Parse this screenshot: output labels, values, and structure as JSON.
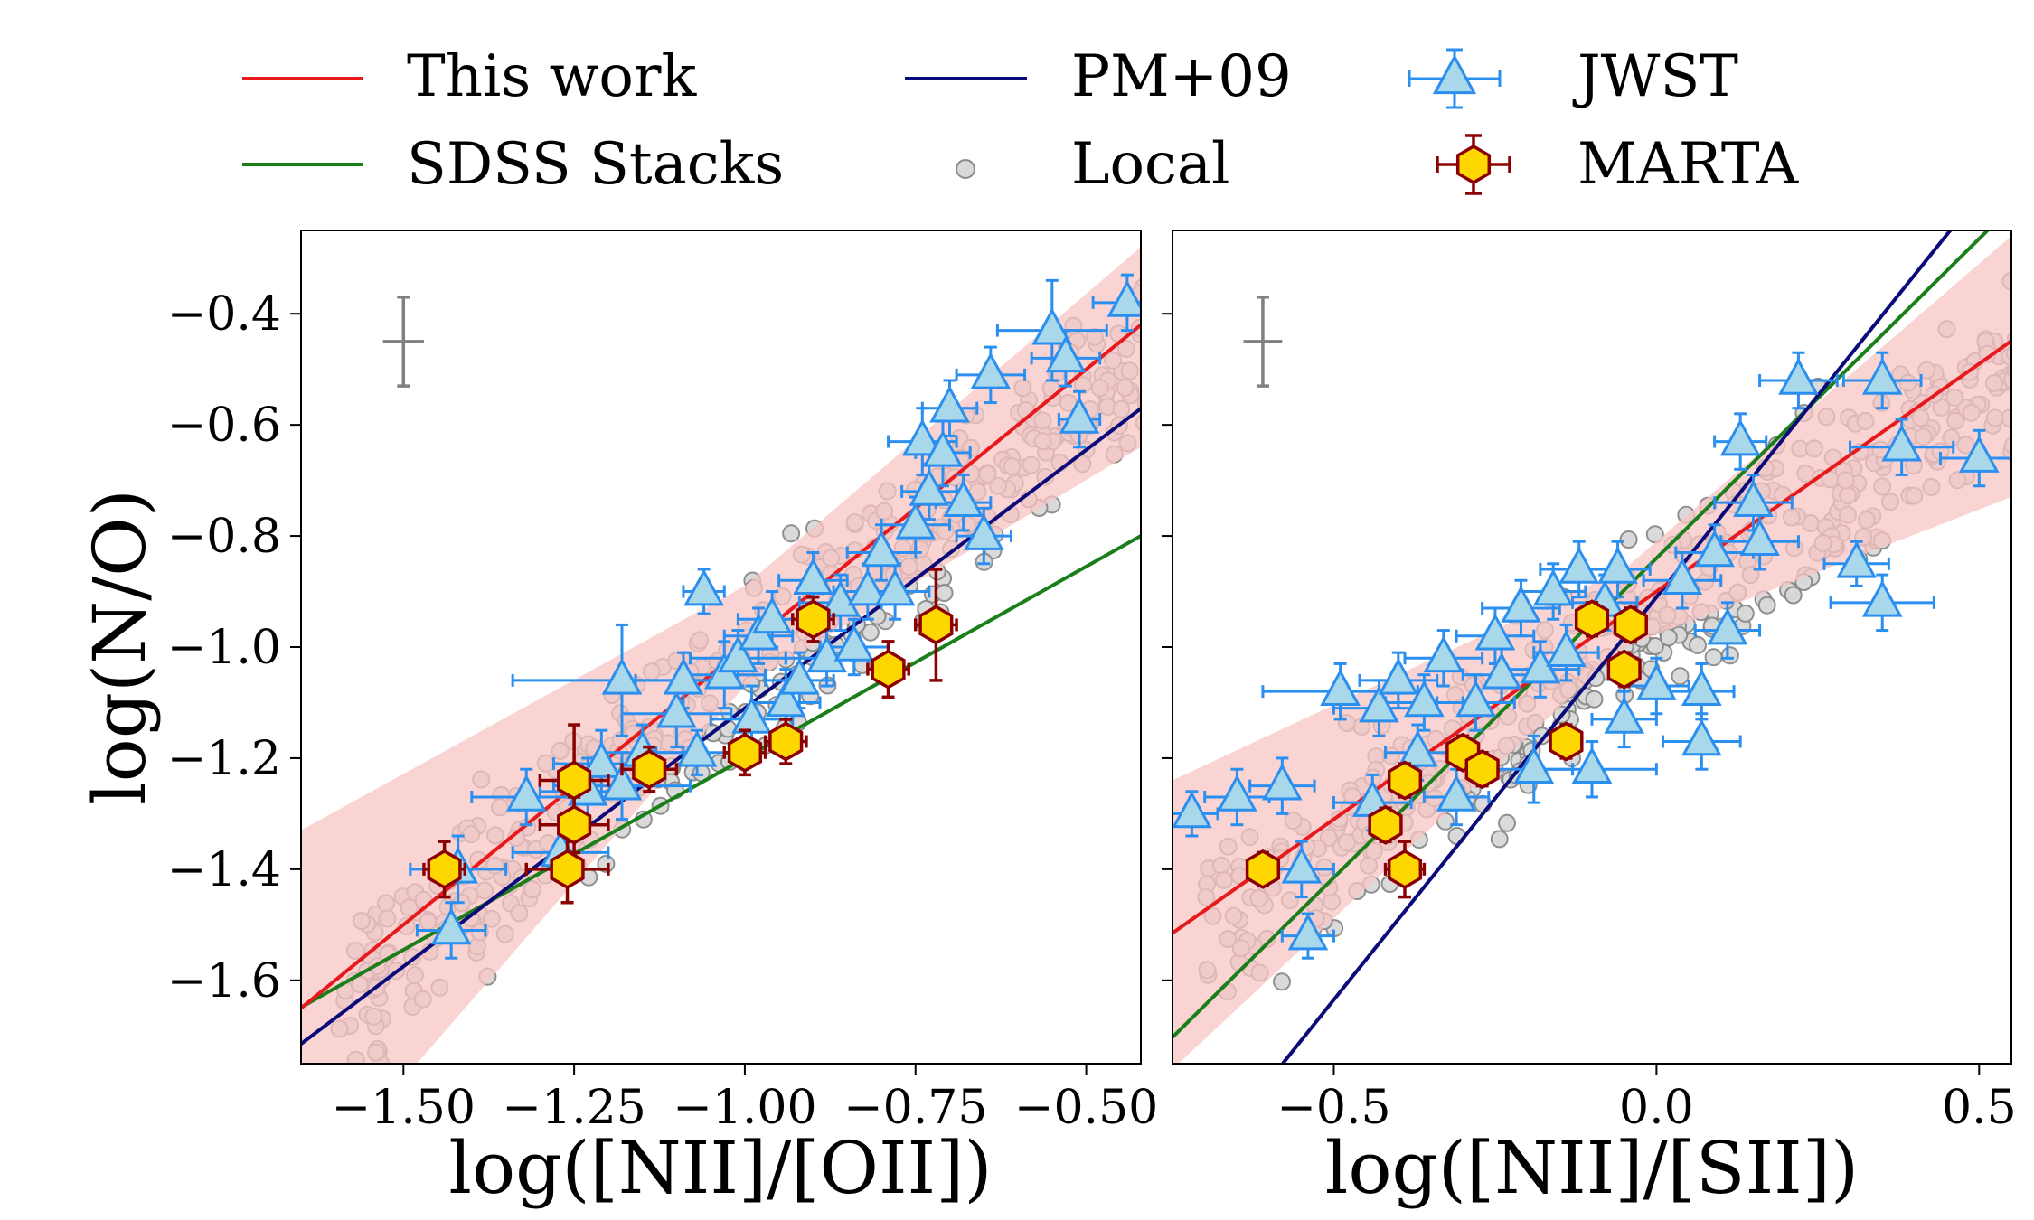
{
  "colors": {
    "this_work": "#e8191c",
    "this_work_band": "#f8c4c4",
    "sdss": "#1a7f1a",
    "pm09": "#0a0a7a",
    "local_fill": "#d9d9d9",
    "local_edge": "#8a8a8a",
    "jwst_fill": "#a8d8ea",
    "jwst_edge": "#2b8ff0",
    "marta_fill": "#ffd700",
    "marta_edge": "#8b0000",
    "errbar": "#808080"
  },
  "legend": {
    "this_work": "This work",
    "sdss": "SDSS Stacks",
    "pm09": "PM+09",
    "local": "Local",
    "jwst": "JWST",
    "marta": "MARTA"
  },
  "chart_data": [
    {
      "type": "scatter",
      "xlabel": "log([NII]/[OII])",
      "ylabel": "log(N/O)",
      "xlim": [
        -1.65,
        -0.42
      ],
      "ylim": [
        -1.75,
        -0.25
      ],
      "xticks": [
        -1.5,
        -1.25,
        -1.0,
        -0.75,
        -0.5
      ],
      "xtick_labels": [
        "−1.50",
        "−1.25",
        "−1.00",
        "−0.75",
        "−0.50"
      ],
      "yticks": [
        -1.6,
        -1.4,
        -1.2,
        -1.0,
        -0.8,
        -0.6,
        -0.4
      ],
      "ytick_labels": [
        "−1.6",
        "−1.4",
        "−1.2",
        "−1.0",
        "−0.8",
        "−0.6",
        "−0.4"
      ],
      "typical_error": {
        "x": -1.5,
        "y": -0.45,
        "dx": 0.03,
        "dy": 0.08
      },
      "lines": {
        "this_work": {
          "slope": 1.0,
          "intercept": 0.0
        },
        "pm09": {
          "slope": 0.93,
          "intercept": -0.18
        },
        "sdss": {
          "slope": 0.69,
          "intercept": -0.51
        }
      },
      "band": {
        "x": [
          -1.65,
          -1.0,
          -0.42
        ],
        "lo": [
          -1.99,
          -1.07,
          -0.64
        ],
        "hi": [
          -1.33,
          -0.89,
          -0.28
        ]
      },
      "series": [
        {
          "name": "MARTA",
          "points": [
            [
              -1.44,
              -1.4,
              0.03,
              0.05
            ],
            [
              -1.26,
              -1.4,
              0.06,
              0.06
            ],
            [
              -1.25,
              -1.32,
              0.05,
              0.05
            ],
            [
              -1.25,
              -1.24,
              0.05,
              0.1
            ],
            [
              -1.14,
              -1.22,
              0.04,
              0.04
            ],
            [
              -1.0,
              -1.19,
              0.03,
              0.04
            ],
            [
              -0.94,
              -1.17,
              0.03,
              0.04
            ],
            [
              -0.9,
              -0.95,
              0.03,
              0.04
            ],
            [
              -0.79,
              -1.04,
              0.03,
              0.05
            ],
            [
              -0.72,
              -0.96,
              0.03,
              0.1
            ]
          ]
        },
        {
          "name": "JWST",
          "points": [
            [
              -1.43,
              -1.51,
              0.05,
              0.05
            ],
            [
              -1.42,
              -1.4,
              0.07,
              0.06
            ],
            [
              -1.32,
              -1.27,
              0.08,
              0.05
            ],
            [
              -1.27,
              -1.37,
              0.07,
              0.05
            ],
            [
              -1.23,
              -1.26,
              0.07,
              0.06
            ],
            [
              -1.21,
              -1.21,
              0.07,
              0.06
            ],
            [
              -1.18,
              -1.25,
              0.1,
              0.06
            ],
            [
              -1.18,
              -1.06,
              0.16,
              0.1
            ],
            [
              -1.15,
              -1.19,
              0.06,
              0.05
            ],
            [
              -1.1,
              -1.12,
              0.08,
              0.06
            ],
            [
              -1.09,
              -1.06,
              0.07,
              0.05
            ],
            [
              -1.07,
              -1.19,
              0.06,
              0.04
            ],
            [
              -1.06,
              -0.9,
              0.03,
              0.04
            ],
            [
              -1.03,
              -1.05,
              0.06,
              0.06
            ],
            [
              -1.01,
              -1.02,
              0.07,
              0.05
            ],
            [
              -0.99,
              -1.13,
              0.06,
              0.06
            ],
            [
              -0.98,
              -0.98,
              0.05,
              0.05
            ],
            [
              -0.96,
              -0.95,
              0.05,
              0.05
            ],
            [
              -0.94,
              -1.1,
              0.05,
              0.06
            ],
            [
              -0.92,
              -1.06,
              0.05,
              0.05
            ],
            [
              -0.9,
              -0.88,
              0.05,
              0.05
            ],
            [
              -0.88,
              -1.02,
              0.06,
              0.05
            ],
            [
              -0.86,
              -0.92,
              0.06,
              0.05
            ],
            [
              -0.84,
              -1.0,
              0.05,
              0.05
            ],
            [
              -0.82,
              -0.9,
              0.05,
              0.05
            ],
            [
              -0.8,
              -0.83,
              0.05,
              0.05
            ],
            [
              -0.78,
              -0.9,
              0.05,
              0.05
            ],
            [
              -0.75,
              -0.78,
              0.05,
              0.05
            ],
            [
              -0.74,
              -0.63,
              0.05,
              0.06
            ],
            [
              -0.73,
              -0.72,
              0.04,
              0.05
            ],
            [
              -0.71,
              -0.65,
              0.04,
              0.06
            ],
            [
              -0.7,
              -0.57,
              0.04,
              0.05
            ],
            [
              -0.68,
              -0.74,
              0.04,
              0.05
            ],
            [
              -0.65,
              -0.8,
              0.04,
              0.05
            ],
            [
              -0.64,
              -0.51,
              0.05,
              0.05
            ],
            [
              -0.55,
              -0.43,
              0.08,
              0.09
            ],
            [
              -0.53,
              -0.48,
              0.05,
              0.05
            ],
            [
              -0.51,
              -0.59,
              0.03,
              0.05
            ],
            [
              -0.44,
              -0.38,
              0.05,
              0.05
            ]
          ]
        }
      ]
    },
    {
      "type": "scatter",
      "xlabel": "log([NII]/[SII])",
      "ylabel": "",
      "xlim": [
        -0.75,
        0.55
      ],
      "ylim": [
        -1.75,
        -0.25
      ],
      "xticks": [
        -0.5,
        0.0,
        0.5
      ],
      "xtick_labels": [
        "−0.5",
        "0.0",
        "0.5"
      ],
      "yticks": [
        -1.6,
        -1.4,
        -1.2,
        -1.0,
        -0.8,
        -0.6,
        -0.4
      ],
      "typical_error": {
        "x": -0.61,
        "y": -0.45,
        "dx": 0.03,
        "dy": 0.08
      },
      "lines": {
        "this_work": {
          "slope": 0.82,
          "intercept": -0.9
        },
        "pm09": {
          "slope": 1.45,
          "intercept": -0.91
        },
        "sdss": {
          "slope": 1.15,
          "intercept": -0.84
        }
      },
      "band": {
        "x": [
          -0.75,
          -0.05,
          0.55
        ],
        "lo": [
          -1.76,
          -1.0,
          -0.73
        ],
        "hi": [
          -1.24,
          -0.86,
          -0.26
        ]
      },
      "series": [
        {
          "name": "MARTA",
          "points": [
            [
              -0.61,
              -1.4,
              0.02,
              0.03
            ],
            [
              -0.42,
              -1.32,
              0.02,
              0.03
            ],
            [
              -0.39,
              -1.24,
              0.02,
              0.03
            ],
            [
              -0.39,
              -1.4,
              0.03,
              0.05
            ],
            [
              -0.3,
              -1.19,
              0.02,
              0.03
            ],
            [
              -0.27,
              -1.22,
              0.02,
              0.03
            ],
            [
              -0.14,
              -1.17,
              0.02,
              0.03
            ],
            [
              -0.1,
              -0.95,
              0.02,
              0.03
            ],
            [
              -0.05,
              -1.04,
              0.02,
              0.03
            ],
            [
              -0.04,
              -0.96,
              0.02,
              0.03
            ]
          ]
        },
        {
          "name": "JWST",
          "points": [
            [
              -0.72,
              -1.3,
              0.04,
              0.04
            ],
            [
              -0.65,
              -1.27,
              0.05,
              0.05
            ],
            [
              -0.58,
              -1.25,
              0.05,
              0.05
            ],
            [
              -0.55,
              -1.4,
              0.05,
              0.05
            ],
            [
              -0.54,
              -1.52,
              0.04,
              0.04
            ],
            [
              -0.49,
              -1.08,
              0.12,
              0.05
            ],
            [
              -0.44,
              -1.28,
              0.06,
              0.05
            ],
            [
              -0.43,
              -1.11,
              0.07,
              0.05
            ],
            [
              -0.4,
              -1.06,
              0.06,
              0.05
            ],
            [
              -0.37,
              -1.19,
              0.05,
              0.05
            ],
            [
              -0.36,
              -1.1,
              0.06,
              0.05
            ],
            [
              -0.33,
              -1.02,
              0.06,
              0.05
            ],
            [
              -0.31,
              -1.27,
              0.05,
              0.05
            ],
            [
              -0.28,
              -1.1,
              0.06,
              0.05
            ],
            [
              -0.25,
              -0.98,
              0.06,
              0.05
            ],
            [
              -0.24,
              -1.05,
              0.06,
              0.05
            ],
            [
              -0.21,
              -0.93,
              0.06,
              0.05
            ],
            [
              -0.19,
              -1.22,
              0.06,
              0.06
            ],
            [
              -0.18,
              -1.04,
              0.06,
              0.05
            ],
            [
              -0.16,
              -0.9,
              0.05,
              0.05
            ],
            [
              -0.14,
              -1.01,
              0.05,
              0.05
            ],
            [
              -0.12,
              -0.86,
              0.06,
              0.05
            ],
            [
              -0.1,
              -1.22,
              0.1,
              0.05
            ],
            [
              -0.08,
              -0.92,
              0.05,
              0.05
            ],
            [
              -0.06,
              -0.86,
              0.05,
              0.05
            ],
            [
              -0.05,
              -1.13,
              0.05,
              0.05
            ],
            [
              0.0,
              -1.07,
              0.05,
              0.05
            ],
            [
              0.04,
              -0.88,
              0.06,
              0.05
            ],
            [
              0.07,
              -1.08,
              0.05,
              0.05
            ],
            [
              0.07,
              -1.17,
              0.06,
              0.05
            ],
            [
              0.09,
              -0.83,
              0.06,
              0.05
            ],
            [
              0.11,
              -0.97,
              0.05,
              0.05
            ],
            [
              0.13,
              -0.63,
              0.04,
              0.05
            ],
            [
              0.15,
              -0.74,
              0.06,
              0.05
            ],
            [
              0.16,
              -0.81,
              0.06,
              0.05
            ],
            [
              0.22,
              -0.52,
              0.06,
              0.05
            ],
            [
              0.31,
              -0.85,
              0.05,
              0.04
            ],
            [
              0.35,
              -0.92,
              0.08,
              0.05
            ],
            [
              0.35,
              -0.52,
              0.06,
              0.05
            ],
            [
              0.38,
              -0.64,
              0.08,
              0.05
            ],
            [
              0.5,
              -0.66,
              0.06,
              0.05
            ]
          ]
        }
      ]
    }
  ]
}
